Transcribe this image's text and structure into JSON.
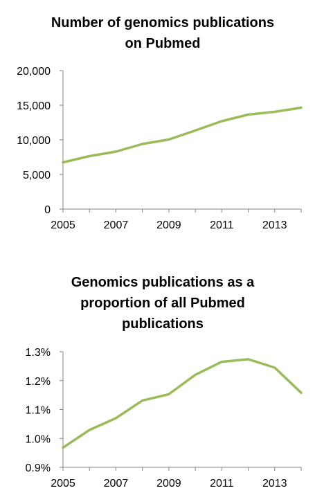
{
  "style": {
    "line_color": "#9BBB59",
    "axis_color": "#868686"
  },
  "chart_data": [
    {
      "type": "line",
      "title_lines": [
        "Number of genomics publications",
        "on Pubmed"
      ],
      "x": [
        2005,
        2006,
        2007,
        2008,
        2009,
        2010,
        2011,
        2012,
        2013,
        2014
      ],
      "series": [
        {
          "values": [
            6750,
            7650,
            8300,
            9400,
            10050,
            11350,
            12700,
            13650,
            14050,
            14650
          ]
        }
      ],
      "ylim": [
        0,
        20000
      ],
      "yticks": [
        0,
        5000,
        10000,
        15000,
        20000
      ],
      "ytick_labels": [
        "0",
        "5,000",
        "10,000",
        "15,000",
        "20,000"
      ],
      "xlim": [
        2005,
        2014
      ],
      "xticks": [
        2005,
        2007,
        2009,
        2011,
        2013
      ],
      "xtick_labels": [
        "2005",
        "2007",
        "2009",
        "2011",
        "2013"
      ],
      "grid": false,
      "legend": "none"
    },
    {
      "type": "line",
      "title_lines": [
        "Genomics publications as a",
        "proportion of all Pubmed",
        "publications"
      ],
      "x": [
        2005,
        2006,
        2007,
        2008,
        2009,
        2010,
        2011,
        2012,
        2013,
        2014
      ],
      "series": [
        {
          "values": [
            0.968,
            1.029,
            1.07,
            1.131,
            1.153,
            1.22,
            1.265,
            1.274,
            1.245,
            1.158
          ]
        }
      ],
      "ylim": [
        0.9,
        1.3
      ],
      "yticks": [
        0.9,
        1.0,
        1.1,
        1.2,
        1.3
      ],
      "ytick_labels": [
        "0.9%",
        "1.0%",
        "1.1%",
        "1.2%",
        "1.3%"
      ],
      "xlim": [
        2005,
        2014
      ],
      "xticks": [
        2005,
        2007,
        2009,
        2011,
        2013
      ],
      "xtick_labels": [
        "2005",
        "2007",
        "2009",
        "2011",
        "2013"
      ],
      "grid": false,
      "legend": "none"
    }
  ]
}
